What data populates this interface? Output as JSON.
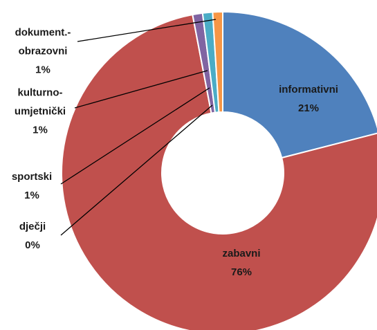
{
  "chart_data": {
    "type": "donut",
    "categories": [
      "informativni",
      "zabavni",
      "dječji",
      "sportski",
      "kulturno-umjetnički",
      "dokument.-obrazovni"
    ],
    "values": [
      21,
      76,
      0,
      1,
      1,
      1
    ],
    "value_labels": [
      "21%",
      "76%",
      "0%",
      "1%",
      "1%",
      "1%"
    ],
    "colors": [
      "#4f81bd",
      "#c0504d",
      "#9bbb59",
      "#8064a2",
      "#4bacc6",
      "#f79646"
    ]
  }
}
